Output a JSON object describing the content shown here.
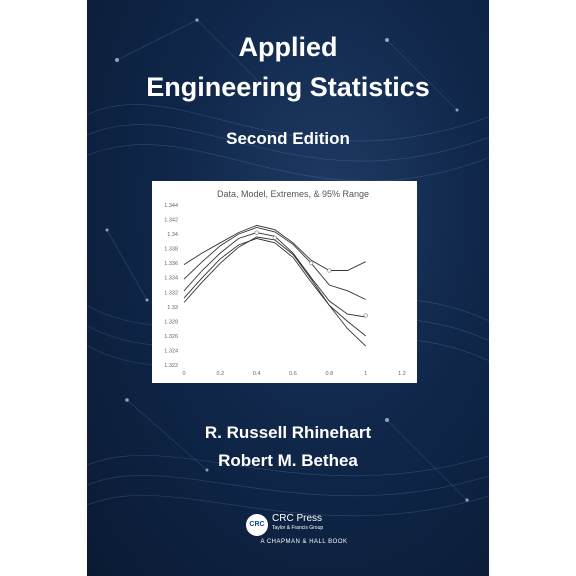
{
  "book": {
    "title_line1": "Applied",
    "title_line2": "Engineering Statistics",
    "edition": "Second Edition",
    "authors": [
      "R. Russell Rhinehart",
      "Robert M. Bethea"
    ],
    "publisher": {
      "logo_text": "CRC",
      "name": "CRC Press",
      "subtitle": "Taylor & Francis Group",
      "imprint": "A CHAPMAN & HALL BOOK"
    }
  },
  "colors": {
    "cover_background": "#10274a",
    "text": "#ffffff",
    "chart_line": "#333333"
  },
  "chart_data": {
    "type": "line",
    "title": "Data, Model, Extremes, & 95% Range",
    "xlim": [
      0,
      1.2
    ],
    "ylim": [
      1.322,
      1.344
    ],
    "x_ticks": [
      "0",
      "0.2",
      "0.4",
      "0.6",
      "0.8",
      "1",
      "1.2"
    ],
    "y_ticks": [
      "1.322",
      "1.324",
      "1.326",
      "1.328",
      "1.33",
      "1.332",
      "1.334",
      "1.336",
      "1.338",
      "1.34",
      "1.342",
      "1.344"
    ],
    "series": [
      {
        "x": [
          0,
          0.1,
          0.2,
          0.3,
          0.4,
          0.5,
          0.6,
          0.7,
          0.8,
          0.9,
          1.0
        ],
        "y": [
          1.3358,
          1.3374,
          1.3388,
          1.3402,
          1.3412,
          1.3406,
          1.3388,
          1.3364,
          1.335,
          1.335,
          1.3362
        ]
      },
      {
        "x": [
          0,
          0.1,
          0.2,
          0.3,
          0.4,
          0.5,
          0.6,
          0.7,
          0.8,
          0.9,
          1.0
        ],
        "y": [
          1.3338,
          1.3362,
          1.3384,
          1.34,
          1.3409,
          1.3403,
          1.3386,
          1.336,
          1.333,
          1.3322,
          1.331
        ]
      },
      {
        "x": [
          0,
          0.1,
          0.2,
          0.3,
          0.4,
          0.5,
          0.6,
          0.7,
          0.8,
          0.9,
          1.0
        ],
        "y": [
          1.3322,
          1.335,
          1.3374,
          1.3394,
          1.3402,
          1.3397,
          1.3374,
          1.334,
          1.3308,
          1.329,
          1.3286
        ]
      },
      {
        "x": [
          0,
          0.1,
          0.2,
          0.3,
          0.4,
          0.5,
          0.6,
          0.7,
          0.8,
          0.9,
          1.0
        ],
        "y": [
          1.3312,
          1.334,
          1.3366,
          1.3385,
          1.3394,
          1.3388,
          1.3368,
          1.3334,
          1.3302,
          1.327,
          1.3246
        ]
      },
      {
        "x": [
          0,
          0.1,
          0.2,
          0.3,
          0.4,
          0.5,
          0.6,
          0.7,
          0.8,
          0.9,
          1.0
        ],
        "y": [
          1.3306,
          1.3334,
          1.336,
          1.3382,
          1.3396,
          1.3392,
          1.3372,
          1.3338,
          1.3302,
          1.328,
          1.326
        ]
      }
    ],
    "markers": [
      {
        "x": 0.4,
        "y": 1.3402
      },
      {
        "x": 0.5,
        "y": 1.3395
      },
      {
        "x": 0.7,
        "y": 1.336
      },
      {
        "x": 0.8,
        "y": 1.335
      },
      {
        "x": 1.0,
        "y": 1.3288
      }
    ]
  }
}
